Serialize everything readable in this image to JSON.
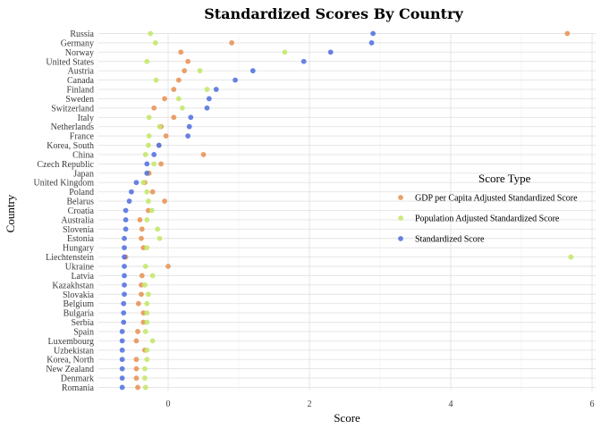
{
  "chart_data": {
    "type": "scatter",
    "title": "Standardized Scores By Country",
    "xlabel": "Score",
    "ylabel": "Country",
    "xlim": [
      -1.0,
      6.0
    ],
    "x_ticks": [
      0,
      2,
      4,
      6
    ],
    "grid": true,
    "legend": {
      "title": "Score Type",
      "placement": "right"
    },
    "categories": [
      "Russia",
      "Germany",
      "Norway",
      "United States",
      "Austria",
      "Canada",
      "Finland",
      "Sweden",
      "Switzerland",
      "Italy",
      "Netherlands",
      "France",
      "Korea, South",
      "China",
      "Czech Republic",
      "Japan",
      "United Kingdom",
      "Poland",
      "Belarus",
      "Croatia",
      "Australia",
      "Slovenia",
      "Estonia",
      "Hungary",
      "Liechtenstein",
      "Ukraine",
      "Latvia",
      "Kazakhstan",
      "Slovakia",
      "Belgium",
      "Bulgaria",
      "Serbia",
      "Spain",
      "Luxembourg",
      "Uzbekistan",
      "Korea, North",
      "New Zealand",
      "Denmark",
      "Romania"
    ],
    "series": [
      {
        "name": "GDP per Capita Adjusted Standardized Score",
        "color": "#E8965A",
        "values": [
          5.65,
          0.9,
          0.18,
          0.28,
          0.23,
          0.15,
          0.08,
          -0.05,
          -0.2,
          0.08,
          -0.1,
          -0.03,
          -0.13,
          0.5,
          -0.1,
          -0.27,
          -0.33,
          -0.22,
          -0.05,
          -0.28,
          -0.4,
          -0.37,
          -0.38,
          -0.35,
          -0.6,
          0.0,
          -0.37,
          -0.38,
          -0.38,
          -0.42,
          -0.35,
          -0.35,
          -0.43,
          -0.45,
          -0.33,
          -0.45,
          -0.45,
          -0.45,
          -0.43
        ]
      },
      {
        "name": "Population Adjusted Standardized Score",
        "color": "#C5E86C",
        "values": [
          -0.25,
          -0.18,
          1.65,
          -0.3,
          0.45,
          -0.17,
          0.55,
          0.15,
          0.2,
          -0.27,
          -0.12,
          -0.27,
          -0.28,
          -0.32,
          -0.2,
          -0.3,
          -0.35,
          -0.3,
          -0.28,
          -0.23,
          -0.3,
          -0.15,
          -0.12,
          -0.3,
          5.7,
          -0.32,
          -0.22,
          -0.33,
          -0.28,
          -0.3,
          -0.3,
          -0.3,
          -0.32,
          -0.22,
          -0.3,
          -0.3,
          -0.33,
          -0.33,
          -0.32
        ]
      },
      {
        "name": "Standardized Score",
        "color": "#5674E0",
        "values": [
          2.9,
          2.88,
          2.3,
          1.92,
          1.2,
          0.95,
          0.68,
          0.58,
          0.55,
          0.32,
          0.3,
          0.28,
          -0.13,
          -0.2,
          -0.3,
          -0.3,
          -0.45,
          -0.52,
          -0.55,
          -0.6,
          -0.6,
          -0.6,
          -0.62,
          -0.62,
          -0.62,
          -0.62,
          -0.62,
          -0.62,
          -0.62,
          -0.63,
          -0.63,
          -0.63,
          -0.65,
          -0.65,
          -0.65,
          -0.65,
          -0.65,
          -0.65,
          -0.65
        ]
      }
    ]
  }
}
